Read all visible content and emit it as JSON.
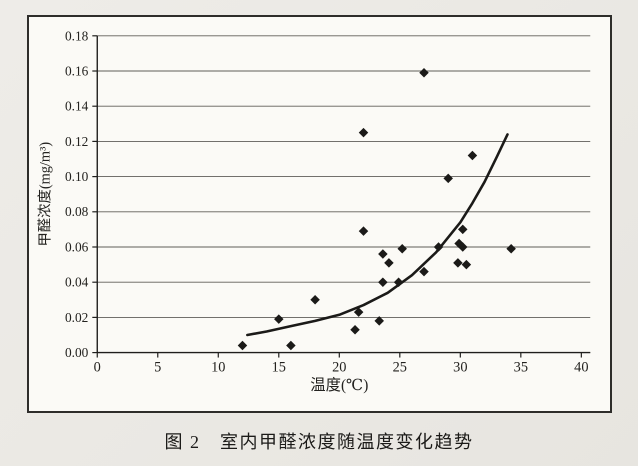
{
  "page": {
    "caption": "图 2　室内甲醛浓度随温度变化趋势"
  },
  "chart_data": {
    "type": "scatter",
    "title": "",
    "xlabel": "温度(℃)",
    "ylabel": "甲醛浓度(mg/m³)",
    "xlim": [
      0,
      40
    ],
    "ylim": [
      0,
      0.18
    ],
    "x_ticks": [
      0,
      5,
      10,
      15,
      20,
      25,
      30,
      35,
      40
    ],
    "y_ticks": [
      "0.00",
      "0.02",
      "0.04",
      "0.06",
      "0.08",
      "0.10",
      "0.12",
      "0.14",
      "0.16",
      "0.18"
    ],
    "y_tick_step": 0.02,
    "grid": "horizontal-only",
    "legend": "none",
    "marker": "diamond",
    "colors": {
      "frame": "#2e2d2a",
      "chart_bg": "#fbfaf6",
      "page_bg": "#eceae5",
      "grid": "#5f5d58",
      "axis": "#1f1e1c",
      "marker": "#1b1a18",
      "trend": "#1b1a18",
      "text": "#23221f"
    },
    "series": [
      {
        "name": "scatter-points",
        "type": "scatter",
        "points": [
          [
            12,
            0.004
          ],
          [
            15,
            0.019
          ],
          [
            16,
            0.004
          ],
          [
            18,
            0.03
          ],
          [
            21.3,
            0.013
          ],
          [
            21.6,
            0.023
          ],
          [
            23.3,
            0.018
          ],
          [
            22,
            0.069
          ],
          [
            22,
            0.125
          ],
          [
            23.6,
            0.04
          ],
          [
            24.9,
            0.04
          ],
          [
            23.6,
            0.056
          ],
          [
            24.1,
            0.051
          ],
          [
            25.2,
            0.059
          ],
          [
            27,
            0.046
          ],
          [
            27,
            0.159
          ],
          [
            28.2,
            0.06
          ],
          [
            29,
            0.099
          ],
          [
            30.2,
            0.07
          ],
          [
            29.9,
            0.062
          ],
          [
            30.2,
            0.06
          ],
          [
            29.8,
            0.051
          ],
          [
            30.5,
            0.05
          ],
          [
            31,
            0.112
          ],
          [
            34.2,
            0.059
          ]
        ]
      },
      {
        "name": "trend-line",
        "type": "line",
        "points": [
          [
            12.4,
            0.01
          ],
          [
            14,
            0.012
          ],
          [
            16,
            0.015
          ],
          [
            18,
            0.018
          ],
          [
            20,
            0.0215
          ],
          [
            22,
            0.027
          ],
          [
            24,
            0.034
          ],
          [
            26,
            0.044
          ],
          [
            28,
            0.057
          ],
          [
            30,
            0.074
          ],
          [
            31,
            0.085
          ],
          [
            32,
            0.097
          ],
          [
            33,
            0.111
          ],
          [
            33.9,
            0.124
          ]
        ]
      }
    ]
  }
}
